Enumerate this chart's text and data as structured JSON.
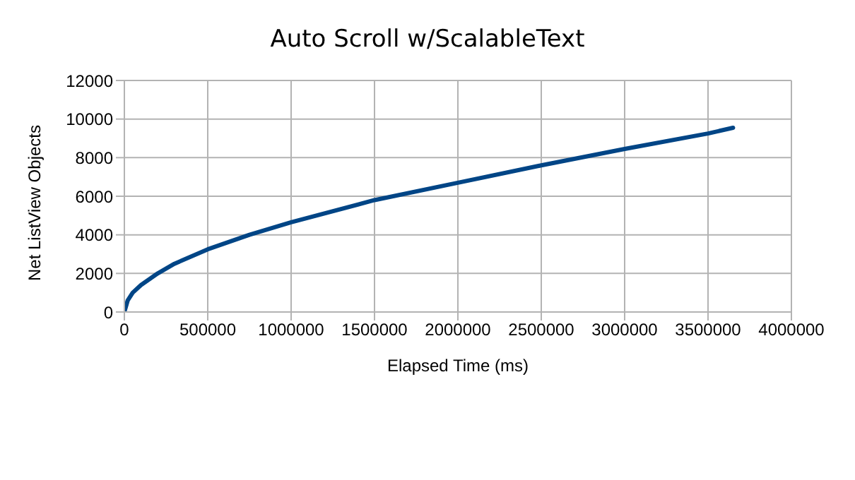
{
  "chart_data": {
    "type": "line",
    "title": "Auto Scroll w/ScalableText",
    "xlabel": "Elapsed Time (ms)",
    "ylabel": "Net ListView Objects",
    "x": [
      0,
      20000,
      50000,
      100000,
      200000,
      300000,
      500000,
      750000,
      1000000,
      1500000,
      2000000,
      2500000,
      3000000,
      3500000,
      3650000
    ],
    "series": [
      {
        "color": "#004586",
        "values": [
          0,
          600,
          1000,
          1400,
          2000,
          2500,
          3250,
          4000,
          4650,
          5800,
          6700,
          7600,
          8450,
          9250,
          9550
        ]
      }
    ],
    "xlim": [
      0,
      4000000
    ],
    "xticks": [
      0,
      500000,
      1000000,
      1500000,
      2000000,
      2500000,
      3000000,
      3500000,
      4000000
    ],
    "ylim": [
      0,
      12000
    ],
    "yticks": [
      0,
      2000,
      4000,
      6000,
      8000,
      10000,
      12000
    ],
    "grid": true,
    "legend": false,
    "marker": "none",
    "line_style": "solid"
  }
}
